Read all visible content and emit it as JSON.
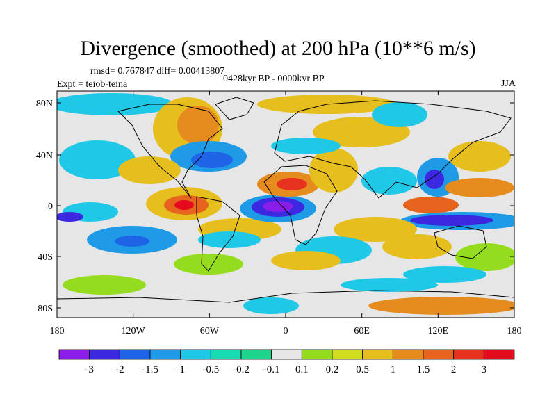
{
  "title": "Divergence (smoothed) at 200 hPa (10**6 m/s)",
  "stats_text": "rmsd= 0.767847 diff= 0.00413807",
  "period": "0428kyr BP - 0000kyr BP",
  "experiment": "Expt = teiob-teina",
  "season": "JJA",
  "map": {
    "lon_ticks": [
      "180",
      "120W",
      "60W",
      "0",
      "60E",
      "120E",
      "180"
    ],
    "lat_ticks": [
      "80N",
      "40N",
      "0",
      "40S",
      "80S"
    ]
  },
  "colorbar": {
    "colors": [
      "#8a1ee8",
      "#3c28e0",
      "#1e64e6",
      "#1e9ae6",
      "#1ec8e6",
      "#16dcb4",
      "#1ed48c",
      "#e6e6e6",
      "#96dc1e",
      "#d2dc1e",
      "#e6be1e",
      "#e68c1e",
      "#e6641e",
      "#e6321e",
      "#e60a1e"
    ],
    "labels": [
      "-3",
      "-2",
      "-1.5",
      "-1",
      "-0.5",
      "-0.2",
      "-0.1",
      "0.1",
      "0.2",
      "0.5",
      "1",
      "1.5",
      "2",
      "3"
    ]
  }
}
